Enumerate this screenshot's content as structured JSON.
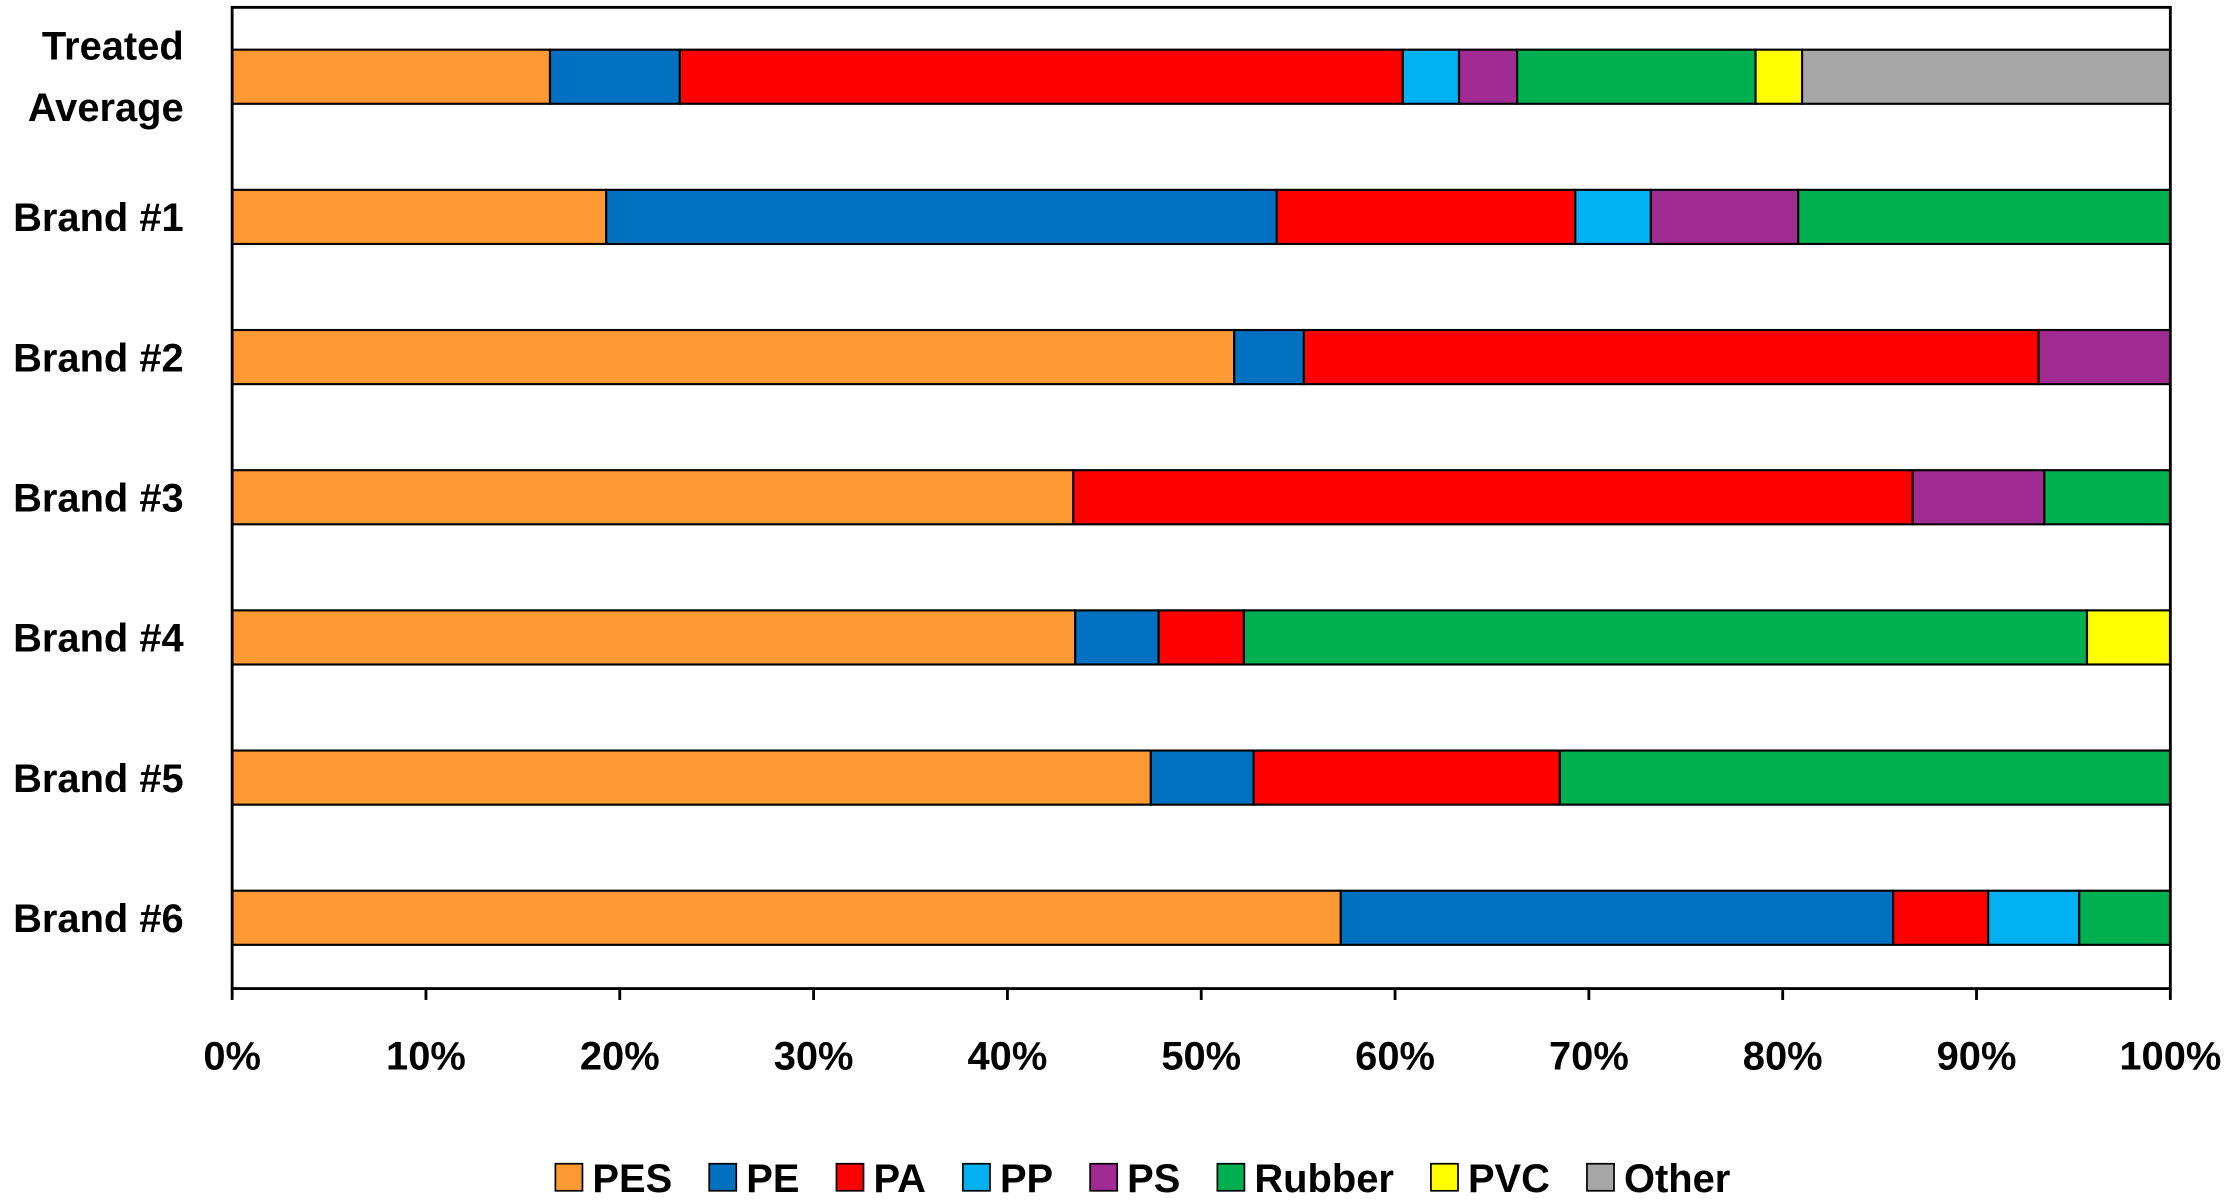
{
  "chart_data": {
    "type": "bar",
    "orientation": "horizontal",
    "stacked": "100%",
    "categories": [
      [
        "Treated",
        "Average"
      ],
      [
        "Brand #1"
      ],
      [
        "Brand #2"
      ],
      [
        "Brand #3"
      ],
      [
        "Brand #4"
      ],
      [
        "Brand #5"
      ],
      [
        "Brand #6"
      ]
    ],
    "series": [
      {
        "name": "PES",
        "color": "#FF9933",
        "values": [
          16.4,
          19.3,
          51.7,
          43.4,
          43.5,
          47.4,
          57.2
        ]
      },
      {
        "name": "PE",
        "color": "#0070C0",
        "values": [
          6.7,
          34.6,
          3.6,
          0,
          4.3,
          5.3,
          28.5
        ]
      },
      {
        "name": "PA",
        "color": "#FF0000",
        "values": [
          37.3,
          15.4,
          37.9,
          43.3,
          4.4,
          15.8,
          4.9
        ]
      },
      {
        "name": "PP",
        "color": "#00B0F0",
        "values": [
          2.9,
          3.9,
          0,
          0,
          0,
          0,
          4.7
        ]
      },
      {
        "name": "PS",
        "color": "#A02B93",
        "values": [
          3.0,
          7.6,
          6.8,
          6.8,
          0,
          0,
          0
        ]
      },
      {
        "name": "Rubber",
        "color": "#00B050",
        "values": [
          12.3,
          19.2,
          0,
          6.5,
          43.5,
          31.5,
          4.7
        ]
      },
      {
        "name": "PVC",
        "color": "#FFFF00",
        "values": [
          2.4,
          0,
          0,
          0,
          4.3,
          0,
          0
        ]
      },
      {
        "name": "Other",
        "color": "#A6A6A6",
        "values": [
          19.0,
          0,
          0,
          0,
          0,
          0,
          0
        ]
      }
    ],
    "xlim": [
      0,
      100
    ],
    "xticks": [
      "0%",
      "10%",
      "20%",
      "30%",
      "40%",
      "50%",
      "60%",
      "70%",
      "80%",
      "90%",
      "100%"
    ],
    "grid": false,
    "legend_position": "bottom"
  }
}
